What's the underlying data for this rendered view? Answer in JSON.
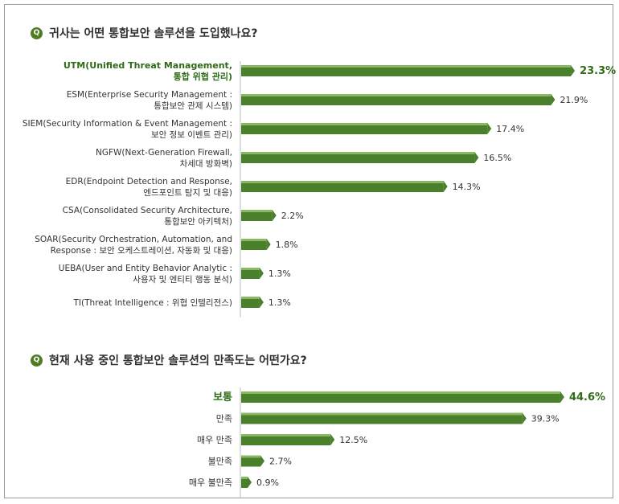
{
  "colors": {
    "bar": "#4a7f2b",
    "bar_light": "#8ab863",
    "accent_text": "#2f6b17",
    "axis": "#bdbdbd"
  },
  "q1": {
    "icon": "Q",
    "title": "귀사는 어떤 통합보안 솔루션을 도입했나요?"
  },
  "q2": {
    "icon": "Q",
    "title": "현재 사용 중인 통합보안 솔루션의 만족도는 어떤가요?"
  },
  "chart_data": [
    {
      "type": "bar",
      "orientation": "horizontal",
      "categories": [
        [
          "UTM(Unified Threat Management,",
          "통합 위협 관리)"
        ],
        [
          "ESM(Enterprise Security Management :",
          "통합보안 관제 시스템)"
        ],
        [
          "SIEM(Security Information & Event Management :",
          "보안 정보 이벤트 관리)"
        ],
        [
          "NGFW(Next-Generation Firewall,",
          "차세대 방화벽)"
        ],
        [
          "EDR(Endpoint Detection and Response,",
          "엔드포인트 탐지 및 대응)"
        ],
        [
          "CSA(Consolidated Security Architecture,",
          "통합보안 아키텍처)"
        ],
        [
          "SOAR(Security Orchestration, Automation, and",
          "Response : 보안 오케스트레이션, 자동화 및 대응)"
        ],
        [
          "UEBA(User and Entity Behavior Analytic :",
          "사용자 및 엔티티 행동 분석)"
        ],
        [
          "TI(Threat Intelligence : 위협 인텔리전스)"
        ]
      ],
      "values": [
        23.3,
        21.9,
        17.4,
        16.5,
        14.3,
        2.2,
        1.8,
        1.3,
        1.3
      ],
      "value_labels": [
        "23.3%",
        "21.9%",
        "17.4%",
        "16.5%",
        "14.3%",
        "2.2%",
        "1.8%",
        "1.3%",
        "1.3%"
      ],
      "highlight_index": 0
    },
    {
      "type": "bar",
      "orientation": "horizontal",
      "categories": [
        [
          "보통"
        ],
        [
          "만족"
        ],
        [
          "매우 만족"
        ],
        [
          "불만족"
        ],
        [
          "매우 불만족"
        ]
      ],
      "values": [
        44.6,
        39.3,
        12.5,
        2.7,
        0.9
      ],
      "value_labels": [
        "44.6%",
        "39.3%",
        "12.5%",
        "2.7%",
        "0.9%"
      ],
      "highlight_index": 0
    }
  ]
}
